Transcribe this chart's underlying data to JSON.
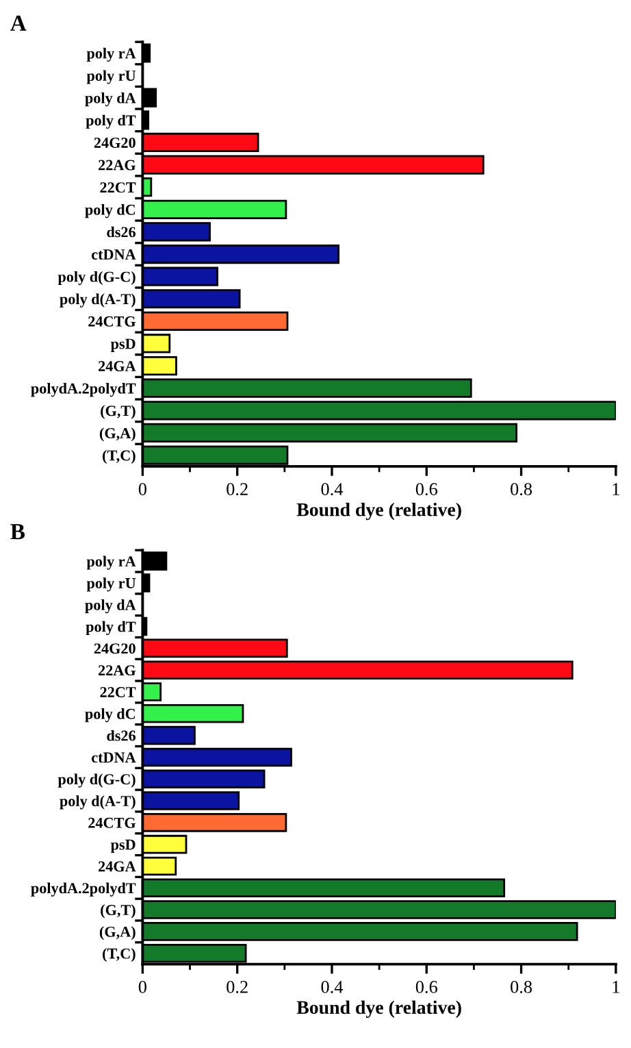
{
  "chart_data": [
    {
      "type": "bar",
      "orientation": "horizontal",
      "title": "A",
      "xlabel": "Bound dye (relative)",
      "categories": [
        "poly rA",
        "poly rU",
        "poly dA",
        "poly dT",
        "24G20",
        "22AG",
        "22CT",
        "poly dC",
        "ds26",
        "ctDNA",
        "poly d(G-C)",
        "poly d(A-T)",
        "24CTG",
        "psD",
        "24GA",
        "polydA.2polydT",
        "(G,T)",
        "(G,A)",
        "(T,C)"
      ],
      "values": [
        0.015,
        0,
        0.028,
        0.012,
        0.244,
        0.72,
        0.018,
        0.303,
        0.142,
        0.414,
        0.158,
        0.205,
        0.306,
        0.057,
        0.071,
        0.694,
        1,
        0.79,
        0.306
      ],
      "colors": [
        "#000000",
        "#000000",
        "#000000",
        "#000000",
        "#ff0a14",
        "#ff0a14",
        "#33f04a",
        "#33f04a",
        "#0a14a0",
        "#0a14a0",
        "#0a14a0",
        "#0a14a0",
        "#ff6a33",
        "#ffff3c",
        "#ffff3c",
        "#137a2a",
        "#137a2a",
        "#137a2a",
        "#137a2a"
      ],
      "xlim": [
        0,
        1
      ],
      "xticks": [
        0,
        0.2,
        0.4,
        0.6,
        0.8,
        1
      ],
      "grid": false
    },
    {
      "type": "bar",
      "orientation": "horizontal",
      "title": "B",
      "xlabel": "Bound dye (relative)",
      "categories": [
        "poly rA",
        "poly rU",
        "poly dA",
        "poly dT",
        "24G20",
        "22AG",
        "22CT",
        "poly dC",
        "ds26",
        "ctDNA",
        "poly d(G-C)",
        "poly d(A-T)",
        "24CTG",
        "psD",
        "24GA",
        "polydA.2polydT",
        "(G,T)",
        "(G,A)",
        "(T,C)"
      ],
      "values": [
        0.05,
        0.014,
        0,
        0.008,
        0.305,
        0.908,
        0.038,
        0.212,
        0.11,
        0.314,
        0.257,
        0.203,
        0.303,
        0.092,
        0.07,
        0.764,
        1,
        0.918,
        0.218
      ],
      "colors": [
        "#000000",
        "#000000",
        "#000000",
        "#000000",
        "#ff0a14",
        "#ff0a14",
        "#33f04a",
        "#33f04a",
        "#0a14a0",
        "#0a14a0",
        "#0a14a0",
        "#0a14a0",
        "#ff6a33",
        "#ffff3c",
        "#ffff3c",
        "#137a2a",
        "#137a2a",
        "#137a2a",
        "#137a2a"
      ],
      "xlim": [
        0,
        1
      ],
      "xticks": [
        0,
        0.2,
        0.4,
        0.6,
        0.8,
        1
      ],
      "grid": false
    }
  ]
}
